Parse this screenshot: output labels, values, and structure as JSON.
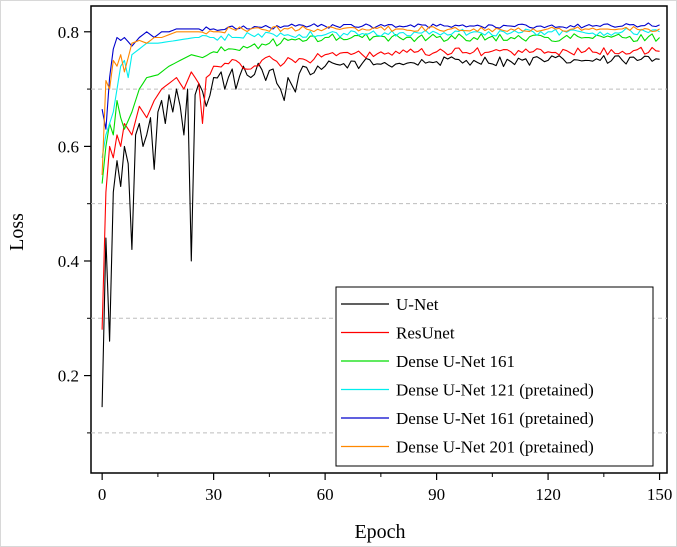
{
  "chart_data": {
    "type": "line",
    "title": "",
    "xlabel": "Epoch",
    "ylabel": "Loss",
    "xlim": [
      -3,
      152
    ],
    "ylim": [
      0.03,
      0.845
    ],
    "x_ticks": [
      0,
      30,
      60,
      90,
      120,
      150
    ],
    "y_ticks": [
      0.2,
      0.4,
      0.6,
      0.8
    ],
    "grid": "dashed horizontal at 0.1, 0.3, 0.5, 0.7",
    "legend_position": "bottom-right",
    "epochs": 150,
    "series": [
      {
        "name": "U-Net",
        "color": "#000000",
        "anchors": [
          [
            0,
            0.145
          ],
          [
            1,
            0.44
          ],
          [
            2,
            0.26
          ],
          [
            3,
            0.52
          ],
          [
            4,
            0.575
          ],
          [
            5,
            0.53
          ],
          [
            6,
            0.6
          ],
          [
            7,
            0.57
          ],
          [
            8,
            0.42
          ],
          [
            9,
            0.62
          ],
          [
            10,
            0.64
          ],
          [
            11,
            0.6
          ],
          [
            12,
            0.62
          ],
          [
            13,
            0.65
          ],
          [
            14,
            0.56
          ],
          [
            15,
            0.66
          ],
          [
            16,
            0.68
          ],
          [
            17,
            0.64
          ],
          [
            18,
            0.69
          ],
          [
            19,
            0.66
          ],
          [
            20,
            0.7
          ],
          [
            21,
            0.67
          ],
          [
            22,
            0.62
          ],
          [
            23,
            0.7
          ],
          [
            24,
            0.4
          ],
          [
            25,
            0.69
          ],
          [
            26,
            0.71
          ],
          [
            28,
            0.67
          ],
          [
            30,
            0.72
          ],
          [
            32,
            0.73
          ],
          [
            33,
            0.7
          ],
          [
            35,
            0.735
          ],
          [
            36,
            0.7
          ],
          [
            38,
            0.74
          ],
          [
            40,
            0.72
          ],
          [
            42,
            0.745
          ],
          [
            44,
            0.715
          ],
          [
            46,
            0.735
          ],
          [
            48,
            0.7
          ],
          [
            49,
            0.68
          ],
          [
            50,
            0.72
          ],
          [
            52,
            0.695
          ],
          [
            54,
            0.74
          ],
          [
            56,
            0.725
          ],
          [
            60,
            0.74
          ],
          [
            70,
            0.745
          ],
          [
            80,
            0.745
          ],
          [
            90,
            0.748
          ],
          [
            100,
            0.75
          ],
          [
            110,
            0.748
          ],
          [
            120,
            0.75
          ],
          [
            130,
            0.75
          ],
          [
            140,
            0.75
          ],
          [
            150,
            0.752
          ]
        ],
        "noise": 0.009
      },
      {
        "name": "ResUnet",
        "color": "#ff0000",
        "anchors": [
          [
            0,
            0.28
          ],
          [
            1,
            0.52
          ],
          [
            2,
            0.6
          ],
          [
            3,
            0.58
          ],
          [
            4,
            0.62
          ],
          [
            5,
            0.6
          ],
          [
            6,
            0.64
          ],
          [
            8,
            0.62
          ],
          [
            10,
            0.67
          ],
          [
            12,
            0.65
          ],
          [
            14,
            0.68
          ],
          [
            16,
            0.7
          ],
          [
            18,
            0.71
          ],
          [
            20,
            0.72
          ],
          [
            22,
            0.7
          ],
          [
            24,
            0.73
          ],
          [
            26,
            0.71
          ],
          [
            27,
            0.64
          ],
          [
            28,
            0.72
          ],
          [
            30,
            0.74
          ],
          [
            33,
            0.745
          ],
          [
            36,
            0.75
          ],
          [
            40,
            0.735
          ],
          [
            44,
            0.755
          ],
          [
            48,
            0.74
          ],
          [
            50,
            0.755
          ],
          [
            55,
            0.75
          ],
          [
            60,
            0.76
          ],
          [
            70,
            0.76
          ],
          [
            80,
            0.762
          ],
          [
            90,
            0.765
          ],
          [
            100,
            0.765
          ],
          [
            110,
            0.765
          ],
          [
            120,
            0.765
          ],
          [
            130,
            0.766
          ],
          [
            140,
            0.766
          ],
          [
            150,
            0.766
          ]
        ],
        "noise": 0.007
      },
      {
        "name": "Dense U-Net 161",
        "color": "#00dd00",
        "anchors": [
          [
            0,
            0.535
          ],
          [
            1,
            0.6
          ],
          [
            2,
            0.64
          ],
          [
            3,
            0.62
          ],
          [
            4,
            0.68
          ],
          [
            5,
            0.65
          ],
          [
            6,
            0.63
          ],
          [
            8,
            0.66
          ],
          [
            10,
            0.7
          ],
          [
            12,
            0.72
          ],
          [
            15,
            0.725
          ],
          [
            18,
            0.74
          ],
          [
            21,
            0.75
          ],
          [
            24,
            0.76
          ],
          [
            27,
            0.755
          ],
          [
            30,
            0.765
          ],
          [
            35,
            0.77
          ],
          [
            40,
            0.775
          ],
          [
            45,
            0.78
          ],
          [
            50,
            0.785
          ],
          [
            55,
            0.785
          ],
          [
            60,
            0.79
          ],
          [
            70,
            0.79
          ],
          [
            80,
            0.79
          ],
          [
            90,
            0.79
          ],
          [
            100,
            0.79
          ],
          [
            110,
            0.79
          ],
          [
            120,
            0.79
          ],
          [
            130,
            0.79
          ],
          [
            140,
            0.79
          ],
          [
            150,
            0.79
          ]
        ],
        "noise": 0.007
      },
      {
        "name": "Dense U-Net 121 (pretained)",
        "color": "#00eeee",
        "anchors": [
          [
            0,
            0.58
          ],
          [
            1,
            0.62
          ],
          [
            2,
            0.64
          ],
          [
            3,
            0.66
          ],
          [
            4,
            0.7
          ],
          [
            5,
            0.74
          ],
          [
            6,
            0.75
          ],
          [
            7,
            0.72
          ],
          [
            8,
            0.76
          ],
          [
            10,
            0.77
          ],
          [
            12,
            0.78
          ],
          [
            15,
            0.78
          ],
          [
            20,
            0.785
          ],
          [
            25,
            0.79
          ],
          [
            30,
            0.79
          ],
          [
            35,
            0.79
          ],
          [
            40,
            0.795
          ],
          [
            50,
            0.795
          ],
          [
            60,
            0.795
          ],
          [
            70,
            0.797
          ],
          [
            80,
            0.798
          ],
          [
            90,
            0.798
          ],
          [
            100,
            0.8
          ],
          [
            110,
            0.798
          ],
          [
            120,
            0.8
          ],
          [
            130,
            0.798
          ],
          [
            140,
            0.8
          ],
          [
            150,
            0.8
          ]
        ],
        "noise": 0.006
      },
      {
        "name": "Dense U-Net 161 (pretained)",
        "color": "#0000cc",
        "anchors": [
          [
            0,
            0.665
          ],
          [
            1,
            0.63
          ],
          [
            2,
            0.72
          ],
          [
            3,
            0.77
          ],
          [
            4,
            0.79
          ],
          [
            5,
            0.785
          ],
          [
            6,
            0.79
          ],
          [
            8,
            0.775
          ],
          [
            10,
            0.79
          ],
          [
            12,
            0.8
          ],
          [
            14,
            0.79
          ],
          [
            16,
            0.8
          ],
          [
            18,
            0.8
          ],
          [
            20,
            0.805
          ],
          [
            25,
            0.805
          ],
          [
            30,
            0.805
          ],
          [
            35,
            0.81
          ],
          [
            40,
            0.805
          ],
          [
            50,
            0.81
          ],
          [
            60,
            0.81
          ],
          [
            70,
            0.81
          ],
          [
            80,
            0.81
          ],
          [
            90,
            0.81
          ],
          [
            100,
            0.81
          ],
          [
            110,
            0.81
          ],
          [
            120,
            0.81
          ],
          [
            130,
            0.81
          ],
          [
            140,
            0.81
          ],
          [
            150,
            0.812
          ]
        ],
        "noise": 0.004
      },
      {
        "name": "Dense U-Net 201 (pretained)",
        "color": "#ff8800",
        "anchors": [
          [
            0,
            0.55
          ],
          [
            1,
            0.715
          ],
          [
            2,
            0.7
          ],
          [
            3,
            0.75
          ],
          [
            4,
            0.74
          ],
          [
            5,
            0.76
          ],
          [
            6,
            0.73
          ],
          [
            8,
            0.78
          ],
          [
            10,
            0.785
          ],
          [
            12,
            0.78
          ],
          [
            14,
            0.79
          ],
          [
            16,
            0.79
          ],
          [
            18,
            0.795
          ],
          [
            20,
            0.8
          ],
          [
            25,
            0.8
          ],
          [
            30,
            0.8
          ],
          [
            35,
            0.805
          ],
          [
            40,
            0.805
          ],
          [
            50,
            0.805
          ],
          [
            60,
            0.805
          ],
          [
            70,
            0.805
          ],
          [
            80,
            0.805
          ],
          [
            90,
            0.805
          ],
          [
            100,
            0.805
          ],
          [
            110,
            0.805
          ],
          [
            120,
            0.805
          ],
          [
            130,
            0.805
          ],
          [
            140,
            0.805
          ],
          [
            150,
            0.805
          ]
        ],
        "noise": 0.005
      }
    ]
  }
}
